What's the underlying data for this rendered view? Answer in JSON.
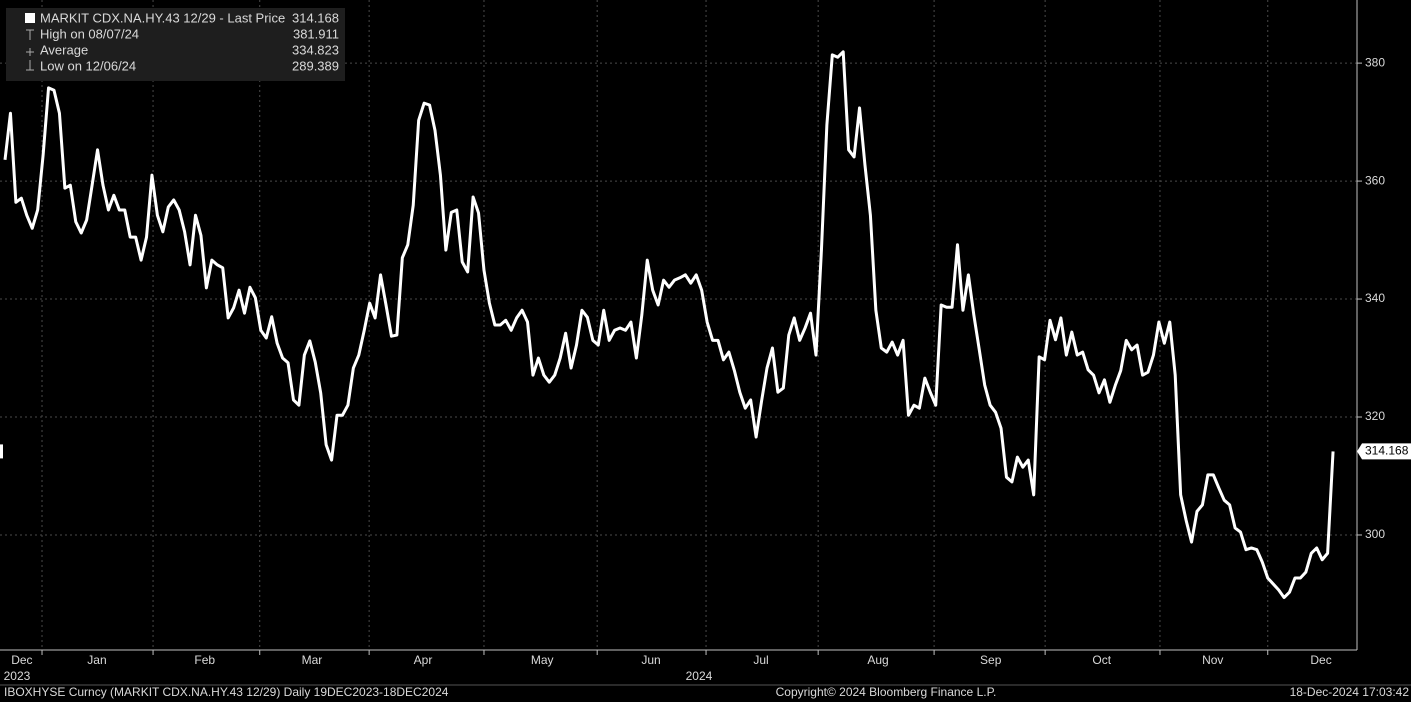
{
  "chart_data": {
    "type": "line",
    "series": [
      {
        "name": "MARKIT CDX.NA.HY.43 12/29 - Last Price",
        "color": "#ffffff",
        "values": [
          363.6,
          371.5,
          356.4,
          357.1,
          354.2,
          352.0,
          355.1,
          364.4,
          375.8,
          375.4,
          371.5,
          358.8,
          359.3,
          353.1,
          351.2,
          353.4,
          359.3,
          365.3,
          359.3,
          355.1,
          357.6,
          355.1,
          355.1,
          350.5,
          350.5,
          346.6,
          350.5,
          361.0,
          354.2,
          351.4,
          355.6,
          356.8,
          355.1,
          351.4,
          345.8,
          354.2,
          350.8,
          341.9,
          346.6,
          345.8,
          345.3,
          336.8,
          338.5,
          341.5,
          337.6,
          342.0,
          340.2,
          334.7,
          333.4,
          337.0,
          332.5,
          330.0,
          329.2,
          322.9,
          322.0,
          330.5,
          332.9,
          329.3,
          324.1,
          315.3,
          312.7,
          320.3,
          320.3,
          322.0,
          328.3,
          330.5,
          334.7,
          339.3,
          336.8,
          344.1,
          339.0,
          333.7,
          333.9,
          347.0,
          349.2,
          355.9,
          370.3,
          373.2,
          372.9,
          368.6,
          361.0,
          348.3,
          354.7,
          355.1,
          346.3,
          344.6,
          357.3,
          354.6,
          344.9,
          339.3,
          335.6,
          335.6,
          336.4,
          334.7,
          336.8,
          338.1,
          336.1,
          327.1,
          330.0,
          327.1,
          325.9,
          327.1,
          330.0,
          334.2,
          328.3,
          332.2,
          338.1,
          336.9,
          333.0,
          332.2,
          338.1,
          333.0,
          334.7,
          335.1,
          334.7,
          336.1,
          330.0,
          337.3,
          346.6,
          341.5,
          339.0,
          343.2,
          342.0,
          343.2,
          343.6,
          344.1,
          342.7,
          344.1,
          341.5,
          336.1,
          333.0,
          333.0,
          329.7,
          331.0,
          327.9,
          324.2,
          321.5,
          322.9,
          316.6,
          322.7,
          328.3,
          331.7,
          324.2,
          324.9,
          333.9,
          336.8,
          333.0,
          335.1,
          337.6,
          330.5,
          348.3,
          369.5,
          381.4,
          381.0,
          381.911,
          365.3,
          364.1,
          372.4,
          362.7,
          354.2,
          338.1,
          331.7,
          331.0,
          332.7,
          330.5,
          333.0,
          320.3,
          322.0,
          321.5,
          326.6,
          324.2,
          322.0,
          339.0,
          338.6,
          338.6,
          349.2,
          338.1,
          344.1,
          337.3,
          331.4,
          325.4,
          322.0,
          320.8,
          318.1,
          309.8,
          309.0,
          313.2,
          311.5,
          312.7,
          306.8,
          330.2,
          329.7,
          336.4,
          333.1,
          336.8,
          330.5,
          334.4,
          330.5,
          331.0,
          328.0,
          327.1,
          324.1,
          326.3,
          322.5,
          325.4,
          327.9,
          333.0,
          331.4,
          332.2,
          327.1,
          327.6,
          330.5,
          336.1,
          332.5,
          336.1,
          327.1,
          306.8,
          302.5,
          298.8,
          304.0,
          305.1,
          310.2,
          310.2,
          308.0,
          305.9,
          305.1,
          301.2,
          300.5,
          297.5,
          297.8,
          297.5,
          295.4,
          292.7,
          291.7,
          290.7,
          289.389,
          290.3,
          292.7,
          292.7,
          293.7,
          296.9,
          297.8,
          295.8,
          296.9,
          314.168
        ]
      }
    ],
    "stats": [
      {
        "label": "High on 08/07/24",
        "value": 381.911
      },
      {
        "label": "Average",
        "value": 334.823
      },
      {
        "label": "Low on 12/06/24",
        "value": 289.389
      }
    ],
    "xlim": [
      -0.92,
      248.4
    ],
    "x_grid": [
      6.8,
      27.2,
      46.8,
      66.9,
      88.0,
      108.8,
      128.8,
      149.4,
      170.7,
      191.1,
      212.2,
      232.0
    ],
    "x_labels": [
      {
        "value": 3.1,
        "label": "Dec"
      },
      {
        "value": 16.9,
        "label": "Jan"
      },
      {
        "value": 36.7,
        "label": "Feb"
      },
      {
        "value": 56.4,
        "label": "Mar"
      },
      {
        "value": 76.8,
        "label": "Apr"
      },
      {
        "value": 98.7,
        "label": "May"
      },
      {
        "value": 118.7,
        "label": "Jun"
      },
      {
        "value": 138.9,
        "label": "Jul"
      },
      {
        "value": 160.4,
        "label": "Aug"
      },
      {
        "value": 181.1,
        "label": "Sep"
      },
      {
        "value": 201.5,
        "label": "Oct"
      },
      {
        "value": 221.9,
        "label": "Nov"
      },
      {
        "value": 241.8,
        "label": "Dec"
      }
    ],
    "year_labels": [
      {
        "value": 2.2,
        "label": "2023"
      },
      {
        "value": 127.5,
        "label": "2024"
      }
    ],
    "ylim": [
      280.5,
      390.7
    ],
    "yticks": [
      300,
      320,
      340,
      360,
      380
    ],
    "grid": true
  },
  "footer": {
    "left": "IBOXHYSE Curncy (MARKIT CDX.NA.HY.43 12/29)  Daily 19DEC2023-18DEC2024",
    "center": "Copyright© 2024 Bloomberg Finance L.P.",
    "right": "18-Dec-2024 17:03:42"
  }
}
